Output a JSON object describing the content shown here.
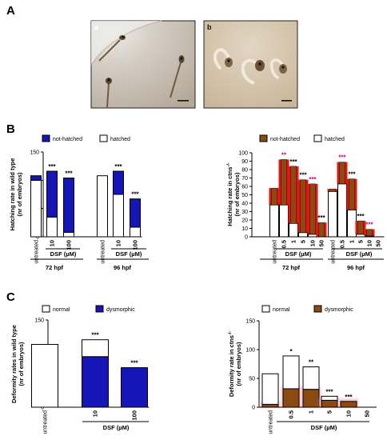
{
  "panels": {
    "A": "A",
    "B": "B",
    "C": "C"
  },
  "photos": {
    "a": {
      "label": "a"
    },
    "b": {
      "label": "b"
    }
  },
  "colors": {
    "blue": "#1515b8",
    "red": "#ee1111",
    "brown": "#8b4a12",
    "white": "#ffffff",
    "star_dark": "#000000",
    "star_magenta": "#cc0077"
  },
  "chart_data": [
    {
      "id": "B_left",
      "type": "bar",
      "ylabel": "Hatching rate in wild type",
      "ylabel2": "(nr of embryos)",
      "ylim": [
        0,
        150
      ],
      "yticks": [
        0,
        50,
        100,
        150
      ],
      "legend": [
        {
          "name": "not-hatched",
          "color": "#1515b8"
        },
        {
          "name": "hatched",
          "color": "#ffffff"
        }
      ],
      "categories": [
        "untreated",
        "10",
        "100",
        "untreated",
        "10",
        "100"
      ],
      "groups": [
        {
          "name": "72 hpf",
          "categories": [
            "untreated",
            "10",
            "100"
          ],
          "dsf_label": "DSF (µM)"
        },
        {
          "name": "96 hpf",
          "categories": [
            "untreated",
            "10",
            "100"
          ],
          "dsf_label": "DSF (µM)"
        }
      ],
      "series": [
        {
          "name": "hatched",
          "values": [
            100,
            35,
            8,
            108,
            75,
            17
          ]
        },
        {
          "name": "not-hatched",
          "values": [
            8,
            81,
            96,
            0,
            41,
            50
          ]
        }
      ],
      "stars": [
        "",
        "***",
        "***",
        "",
        "***",
        "***"
      ]
    },
    {
      "id": "B_right",
      "type": "bar",
      "ylabel": "Hatching rate in ctns",
      "ylabel_sup": "-/-",
      "ylabel2": "(nr of embryos)",
      "ylim": [
        0,
        100
      ],
      "yticks": [
        0,
        10,
        20,
        30,
        40,
        50,
        60,
        70,
        80,
        90,
        100
      ],
      "legend": [
        {
          "name": "not-hatched",
          "color": "#8b4a12"
        },
        {
          "name": "hatched",
          "color": "#ffffff"
        }
      ],
      "categories": [
        "untreated",
        "0.5",
        "1",
        "5",
        "10",
        "50",
        "untreated",
        "0.5",
        "1",
        "5",
        "10",
        "50"
      ],
      "groups": [
        {
          "name": "72 hpf",
          "categories": [
            "untreated",
            "0.5",
            "1",
            "5",
            "10",
            "50"
          ],
          "dsf_label": "DSF (µM)"
        },
        {
          "name": "96 hpf",
          "categories": [
            "untreated",
            "0.5",
            "1",
            "5",
            "10",
            "50"
          ],
          "dsf_label": "DSF (µM)"
        }
      ],
      "series": [
        {
          "name": "hatched",
          "values": [
            38,
            38,
            16,
            5,
            3,
            0,
            54,
            63,
            32,
            3,
            1,
            0
          ]
        },
        {
          "name": "not-hatched",
          "values": [
            20,
            54,
            68,
            63,
            60,
            17,
            3,
            26,
            37,
            16,
            8,
            0
          ]
        }
      ],
      "stars": [
        "",
        "**",
        "***",
        "***",
        "***",
        "***",
        "",
        "***",
        "***",
        "***",
        "***",
        ""
      ],
      "star_colors": [
        "dark",
        "magenta",
        "dark",
        "dark",
        "magenta",
        "dark",
        "dark",
        "magenta",
        "dark",
        "dark",
        "magenta",
        "dark"
      ]
    },
    {
      "id": "C_left",
      "type": "bar",
      "ylabel": "Deformity rates in wild type",
      "ylabel2": "(nr of embryos)",
      "ylim": [
        0,
        150
      ],
      "yticks": [
        0,
        50,
        100,
        150
      ],
      "legend": [
        {
          "name": "normal",
          "color": "#ffffff"
        },
        {
          "name": "dysmorphic",
          "color": "#1515b8"
        }
      ],
      "categories": [
        "untreated",
        "10",
        "100"
      ],
      "dsf_label": "DSF (µM)",
      "series": [
        {
          "name": "dysmorphic",
          "values": [
            0,
            87,
            68
          ]
        },
        {
          "name": "normal",
          "values": [
            108,
            29,
            0
          ]
        }
      ],
      "stars": [
        "",
        "***",
        "***"
      ]
    },
    {
      "id": "C_right",
      "type": "bar",
      "ylabel": "Deformity rate in ctns",
      "ylabel_sup": "-/-",
      "ylabel2": "(nr of embryos)",
      "ylim": [
        0,
        150
      ],
      "yticks": [
        0,
        50,
        100,
        150
      ],
      "legend": [
        {
          "name": "normal",
          "color": "#ffffff"
        },
        {
          "name": "dysmorphic",
          "color": "#8b4a12"
        }
      ],
      "categories": [
        "untreated",
        "0.5",
        "1",
        "5",
        "10",
        "50"
      ],
      "dsf_label": "DSF (µM)",
      "series": [
        {
          "name": "dysmorphic",
          "values": [
            5,
            32,
            31,
            12,
            10,
            0
          ]
        },
        {
          "name": "normal",
          "values": [
            53,
            57,
            39,
            7,
            0,
            0
          ]
        }
      ],
      "stars": [
        "",
        "*",
        "**",
        "***",
        "***",
        ""
      ]
    }
  ]
}
